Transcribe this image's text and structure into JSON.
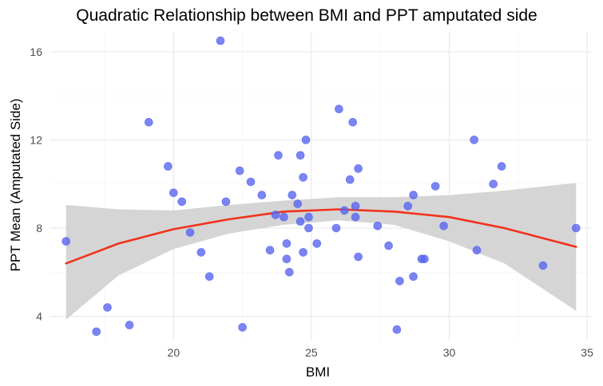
{
  "chart_data": {
    "type": "scatter",
    "title": "Quadratic Relationship between BMI and PPT amputated side",
    "xlabel": "BMI",
    "ylabel": "PPT Mean (Amputated Side)",
    "xlim": [
      15.5,
      35.2
    ],
    "ylim": [
      2.9,
      16.9
    ],
    "x_ticks": [
      20,
      25,
      30,
      35
    ],
    "y_ticks": [
      4,
      8,
      12,
      16
    ],
    "x_minor_ticks": [
      17.5,
      22.5,
      27.5,
      32.5
    ],
    "y_minor_ticks": [
      6,
      10,
      14
    ],
    "grid": true,
    "legend": "none",
    "colors": {
      "points": "#5563f0",
      "fit_line": "#f2311b",
      "confidence_band": "#d3d3d3"
    },
    "points": {
      "x": [
        16.1,
        17.2,
        17.6,
        18.4,
        19.1,
        19.8,
        20.0,
        20.3,
        20.6,
        21.0,
        21.3,
        21.7,
        21.9,
        22.4,
        22.5,
        22.8,
        23.2,
        23.5,
        23.7,
        23.8,
        24.0,
        24.1,
        24.1,
        24.2,
        24.3,
        24.5,
        24.6,
        24.6,
        24.7,
        24.7,
        24.8,
        24.9,
        24.9,
        25.2,
        25.9,
        26.0,
        26.2,
        26.4,
        26.5,
        26.6,
        26.6,
        26.7,
        26.7,
        27.4,
        27.8,
        28.1,
        28.2,
        28.5,
        28.7,
        28.7,
        29.0,
        29.1,
        29.5,
        29.8,
        30.9,
        31.0,
        31.6,
        31.9,
        33.4,
        34.6
      ],
      "y": [
        7.4,
        3.3,
        4.4,
        3.6,
        12.8,
        10.8,
        9.6,
        9.2,
        7.8,
        6.9,
        5.8,
        16.5,
        9.2,
        10.6,
        3.5,
        10.1,
        9.5,
        7.0,
        8.6,
        11.3,
        8.5,
        6.6,
        7.3,
        6.0,
        9.5,
        9.1,
        8.3,
        11.3,
        6.9,
        10.3,
        12.0,
        8.0,
        8.5,
        7.3,
        8.0,
        13.4,
        8.8,
        10.2,
        12.8,
        8.5,
        9.0,
        6.7,
        10.7,
        8.1,
        7.2,
        3.4,
        5.6,
        9.0,
        9.5,
        5.8,
        6.6,
        6.6,
        9.9,
        8.1,
        12.0,
        7.0,
        10.0,
        10.8,
        6.3,
        8.0
      ]
    },
    "fit": {
      "model": "quadratic",
      "x": [
        16.1,
        18.0,
        20.0,
        22.0,
        24.0,
        26.0,
        28.0,
        30.0,
        32.0,
        34.6
      ],
      "y": [
        6.4,
        7.3,
        7.95,
        8.4,
        8.75,
        8.85,
        8.75,
        8.5,
        8.0,
        7.15
      ],
      "ci_lower": [
        3.85,
        5.85,
        7.05,
        7.75,
        8.15,
        8.35,
        8.15,
        7.4,
        6.4,
        4.25
      ],
      "ci_upper": [
        9.05,
        8.85,
        8.8,
        9.05,
        9.25,
        9.4,
        9.4,
        9.5,
        9.7,
        10.05
      ]
    }
  }
}
